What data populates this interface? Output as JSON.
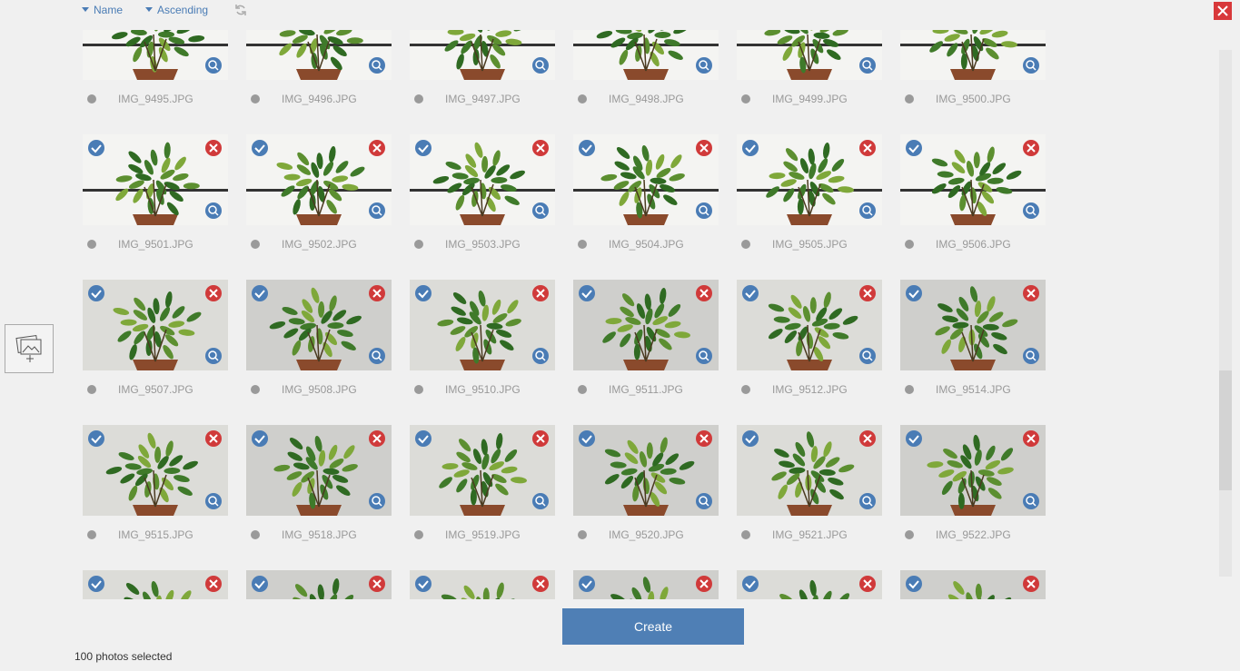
{
  "sort": {
    "field": "Name",
    "order": "Ascending"
  },
  "photos": [
    [
      "IMG_9495.JPG",
      "IMG_9496.JPG",
      "IMG_9497.JPG",
      "IMG_9498.JPG",
      "IMG_9499.JPG",
      "IMG_9500.JPG"
    ],
    [
      "IMG_9501.JPG",
      "IMG_9502.JPG",
      "IMG_9503.JPG",
      "IMG_9504.JPG",
      "IMG_9505.JPG",
      "IMG_9506.JPG"
    ],
    [
      "IMG_9507.JPG",
      "IMG_9508.JPG",
      "IMG_9510.JPG",
      "IMG_9511.JPG",
      "IMG_9512.JPG",
      "IMG_9514.JPG"
    ],
    [
      "IMG_9515.JPG",
      "IMG_9518.JPG",
      "IMG_9519.JPG",
      "IMG_9520.JPG",
      "IMG_9521.JPG",
      "IMG_9522.JPG"
    ]
  ],
  "create_button": "Create",
  "status": "100 photos selected"
}
